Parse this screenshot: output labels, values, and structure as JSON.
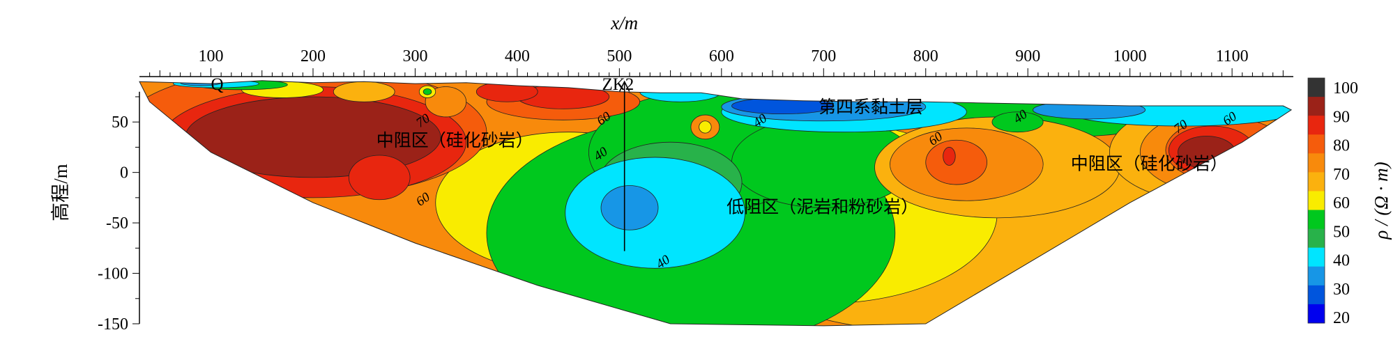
{
  "chart_data": {
    "type": "heatmap",
    "title": "",
    "xlabel": "x/m",
    "ylabel": "高程/m",
    "x_ticks": [
      100,
      200,
      300,
      400,
      500,
      600,
      700,
      800,
      900,
      1000,
      1100
    ],
    "y_ticks": [
      50,
      0,
      -50,
      -100,
      -150
    ],
    "xlim": [
      30,
      1160
    ],
    "ylim": [
      -150,
      95
    ],
    "colorbar": {
      "label": "ρ / (Ω · m)",
      "ticks": [
        100,
        90,
        80,
        70,
        60,
        50,
        40,
        30,
        20
      ],
      "bands": [
        {
          "value": 95,
          "color": "#333333"
        },
        {
          "value": 85,
          "color": "#9b2218"
        },
        {
          "value": 75,
          "color": "#e8260f"
        },
        {
          "value": 65,
          "color": "#f55c0c"
        },
        {
          "value": 58,
          "color": "#f88a0c"
        },
        {
          "value": 53,
          "color": "#fbb10e"
        },
        {
          "value": 47,
          "color": "#f9ec00"
        },
        {
          "value": 43,
          "color": "#00c81e"
        },
        {
          "value": 37,
          "color": "#28b24a"
        },
        {
          "value": 33,
          "color": "#00e5ff"
        },
        {
          "value": 27,
          "color": "#1796e6"
        },
        {
          "value": 22,
          "color": "#0055dd"
        },
        {
          "value": 18,
          "color": "#0000ee"
        }
      ]
    },
    "contour_labels": [
      {
        "text": "70",
        "x": 310,
        "y": 48
      },
      {
        "text": "60",
        "x": 310,
        "y": -30
      },
      {
        "text": "60",
        "x": 487,
        "y": 50
      },
      {
        "text": "40",
        "x": 484,
        "y": 15
      },
      {
        "text": "40",
        "x": 640,
        "y": 48
      },
      {
        "text": "40",
        "x": 545,
        "y": -92
      },
      {
        "text": "60",
        "x": 812,
        "y": 30
      },
      {
        "text": "40",
        "x": 895,
        "y": 52
      },
      {
        "text": "70",
        "x": 1052,
        "y": 42
      },
      {
        "text": "60",
        "x": 1100,
        "y": 50
      }
    ],
    "annotations": [
      {
        "id": "q",
        "text": "Q",
        "x": 100,
        "y": 82
      },
      {
        "id": "zk2",
        "text": "ZK2",
        "x": 483,
        "y": 82
      },
      {
        "id": "quaternary",
        "text": "第四系黏土层",
        "x": 695,
        "y": 59
      },
      {
        "id": "mid-left",
        "text": "中阻区（硅化砂岩）",
        "x": 262,
        "y": 26
      },
      {
        "id": "mid-right",
        "text": "中阻区（硅化砂岩）",
        "x": 942,
        "y": 3
      },
      {
        "id": "low",
        "text": "低阻区（泥岩和粉砂岩）",
        "x": 605,
        "y": -40
      }
    ],
    "borehole": {
      "name": "ZK2",
      "x": 505,
      "top": 90,
      "bottom": -78
    },
    "blobs": [
      {
        "color": "#f88a0c",
        "cx": 480,
        "cy": -20,
        "rx": 420,
        "ry": 120
      },
      {
        "color": "#fbb10e",
        "cx": 830,
        "cy": -60,
        "rx": 250,
        "ry": 100
      },
      {
        "color": "#f9ec00",
        "cx": 700,
        "cy": -40,
        "rx": 170,
        "ry": 90
      },
      {
        "color": "#f9ec00",
        "cx": 450,
        "cy": -30,
        "rx": 130,
        "ry": 70
      },
      {
        "color": "#00c81e",
        "cx": 570,
        "cy": -60,
        "rx": 200,
        "ry": 115
      },
      {
        "color": "#00c81e",
        "cx": 580,
        "cy": 20,
        "rx": 110,
        "ry": 60
      },
      {
        "color": "#00c81e",
        "cx": 700,
        "cy": 10,
        "rx": 90,
        "ry": 45
      },
      {
        "color": "#00c81e",
        "cx": 930,
        "cy": 60,
        "rx": 120,
        "ry": 25
      },
      {
        "color": "#28b24a",
        "cx": 550,
        "cy": -10,
        "rx": 70,
        "ry": 40
      },
      {
        "color": "#00e5ff",
        "cx": 535,
        "cy": -40,
        "rx": 88,
        "ry": 55
      },
      {
        "color": "#1796e6",
        "cx": 510,
        "cy": -35,
        "rx": 28,
        "ry": 22
      },
      {
        "color": "#fbb10e",
        "cx": 870,
        "cy": 5,
        "rx": 120,
        "ry": 50
      },
      {
        "color": "#f88a0c",
        "cx": 840,
        "cy": 8,
        "rx": 75,
        "ry": 36
      },
      {
        "color": "#f55c0c",
        "cx": 830,
        "cy": 10,
        "rx": 30,
        "ry": 22
      },
      {
        "color": "#e8260f",
        "cx": 823,
        "cy": 16,
        "rx": 6,
        "ry": 9
      },
      {
        "color": "#fbb10e",
        "cx": 1080,
        "cy": 20,
        "rx": 100,
        "ry": 50
      },
      {
        "color": "#f88a0c",
        "cx": 1090,
        "cy": 20,
        "rx": 80,
        "ry": 42
      },
      {
        "color": "#f55c0c",
        "cx": 1095,
        "cy": 22,
        "rx": 60,
        "ry": 32
      },
      {
        "color": "#e8260f",
        "cx": 1080,
        "cy": 22,
        "rx": 42,
        "ry": 24
      },
      {
        "color": "#9b2218",
        "cx": 1075,
        "cy": 20,
        "rx": 28,
        "ry": 16
      },
      {
        "color": "#f55c0c",
        "cx": 190,
        "cy": 40,
        "rx": 180,
        "ry": 65
      },
      {
        "color": "#e8260f",
        "cx": 200,
        "cy": 30,
        "rx": 150,
        "ry": 55
      },
      {
        "color": "#9b2218",
        "cx": 200,
        "cy": 35,
        "rx": 125,
        "ry": 40
      },
      {
        "color": "#e8260f",
        "cx": 265,
        "cy": -5,
        "rx": 30,
        "ry": 22
      },
      {
        "color": "#f55c0c",
        "cx": 445,
        "cy": 70,
        "rx": 75,
        "ry": 18
      },
      {
        "color": "#e8260f",
        "cx": 445,
        "cy": 75,
        "rx": 45,
        "ry": 12
      },
      {
        "color": "#e8260f",
        "cx": 390,
        "cy": 80,
        "rx": 30,
        "ry": 10
      },
      {
        "color": "#f88a0c",
        "cx": 330,
        "cy": 70,
        "rx": 20,
        "ry": 15
      },
      {
        "color": "#fbb10e",
        "cx": 250,
        "cy": 80,
        "rx": 30,
        "ry": 10
      },
      {
        "color": "#f9ec00",
        "cx": 170,
        "cy": 82,
        "rx": 40,
        "ry": 8
      },
      {
        "color": "#00c81e",
        "cx": 130,
        "cy": 87,
        "rx": 45,
        "ry": 5
      },
      {
        "color": "#00e5ff",
        "cx": 105,
        "cy": 88,
        "rx": 42,
        "ry": 4
      },
      {
        "color": "#1796e6",
        "cx": 90,
        "cy": 89,
        "rx": 20,
        "ry": 3
      },
      {
        "color": "#00e5ff",
        "cx": 560,
        "cy": 80,
        "rx": 40,
        "ry": 10
      },
      {
        "color": "#f88a0c",
        "cx": 584,
        "cy": 45,
        "rx": 14,
        "ry": 12
      },
      {
        "color": "#f9ec00",
        "cx": 584,
        "cy": 45,
        "rx": 6,
        "ry": 6
      },
      {
        "color": "#00e5ff",
        "cx": 720,
        "cy": 60,
        "rx": 120,
        "ry": 20
      },
      {
        "color": "#1796e6",
        "cx": 700,
        "cy": 65,
        "rx": 100,
        "ry": 14
      },
      {
        "color": "#0055dd",
        "cx": 660,
        "cy": 66,
        "rx": 50,
        "ry": 8
      },
      {
        "color": "#00e5ff",
        "cx": 1050,
        "cy": 60,
        "rx": 110,
        "ry": 14
      },
      {
        "color": "#1796e6",
        "cx": 960,
        "cy": 62,
        "rx": 55,
        "ry": 9
      },
      {
        "color": "#00c81e",
        "cx": 890,
        "cy": 50,
        "rx": 25,
        "ry": 10
      },
      {
        "color": "#f9ec00",
        "cx": 312,
        "cy": 80,
        "rx": 8,
        "ry": 6
      },
      {
        "color": "#00c81e",
        "cx": 312,
        "cy": 80,
        "rx": 4,
        "ry": 3
      }
    ]
  }
}
